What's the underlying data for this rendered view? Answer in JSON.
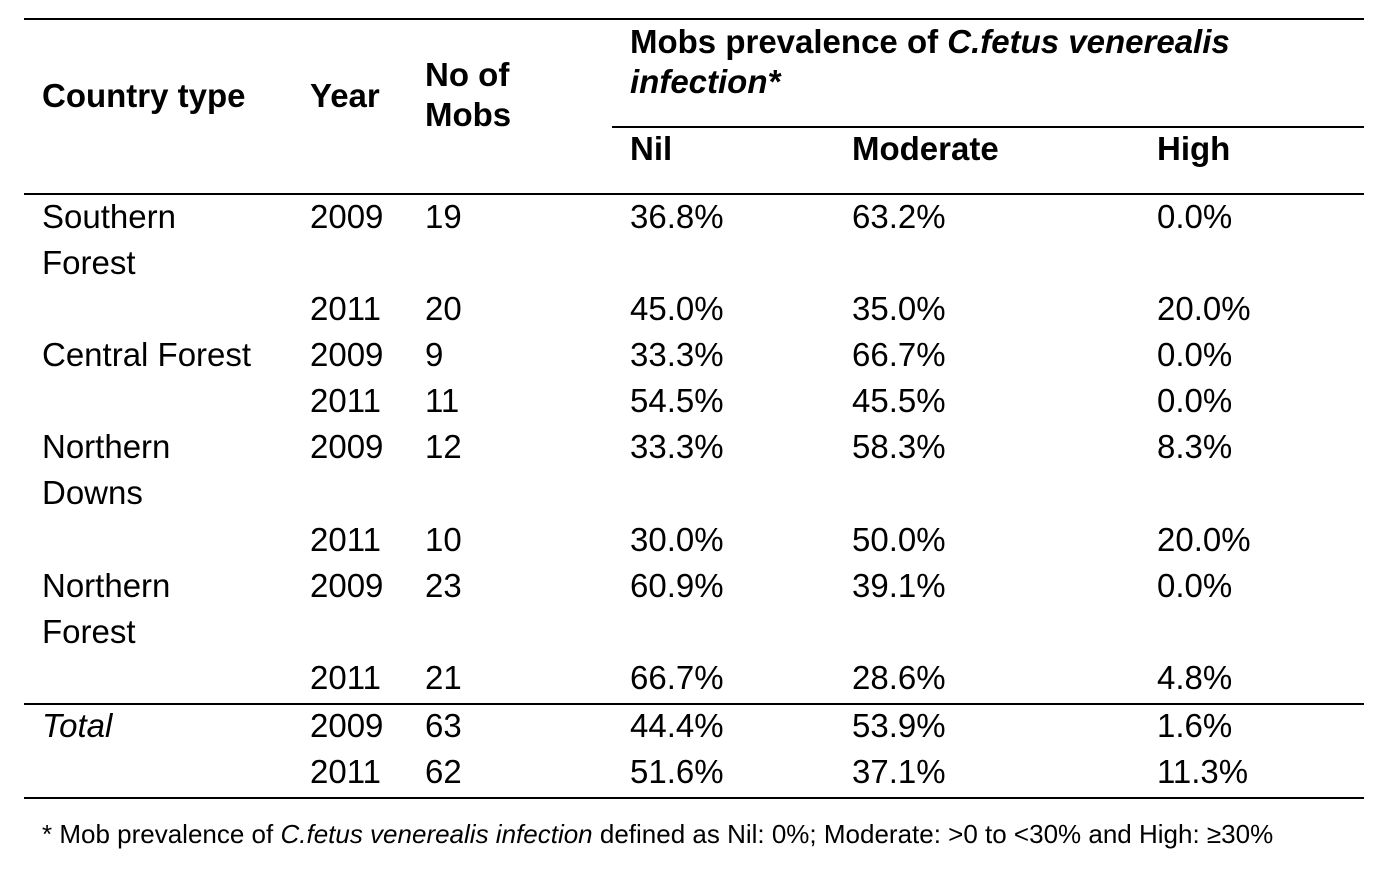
{
  "header": {
    "country_type": "Country type",
    "year": "Year",
    "no_of_mobs_line1": "No of",
    "no_of_mobs_line2": "Mobs",
    "prevalence_prefix": "Mobs prevalence of ",
    "prevalence_italic": "C.fetus venerealis",
    "prevalence_line2": "infection*",
    "nil": "Nil",
    "moderate": "Moderate",
    "high": "High"
  },
  "rows": [
    {
      "country_line1": "Southern",
      "country_line2": "Forest",
      "year": "2009",
      "mobs": "19",
      "nil": "36.8%",
      "moderate": "63.2%",
      "high": "0.0%"
    },
    {
      "country_line1": "",
      "country_line2": "",
      "year": "2011",
      "mobs": "20",
      "nil": "45.0%",
      "moderate": "35.0%",
      "high": "20.0%"
    },
    {
      "country_line1": "Central Forest",
      "country_line2": "",
      "year": "2009",
      "mobs": "9",
      "nil": "33.3%",
      "moderate": "66.7%",
      "high": "0.0%"
    },
    {
      "country_line1": "",
      "country_line2": "",
      "year": "2011",
      "mobs": "11",
      "nil": "54.5%",
      "moderate": "45.5%",
      "high": "0.0%"
    },
    {
      "country_line1": "Northern",
      "country_line2": "Downs",
      "year": "2009",
      "mobs": "12",
      "nil": "33.3%",
      "moderate": "58.3%",
      "high": "8.3%"
    },
    {
      "country_line1": "",
      "country_line2": "",
      "year": "2011",
      "mobs": "10",
      "nil": "30.0%",
      "moderate": "50.0%",
      "high": "20.0%"
    },
    {
      "country_line1": "Northern",
      "country_line2": "Forest",
      "year": "2009",
      "mobs": "23",
      "nil": "60.9%",
      "moderate": "39.1%",
      "high": "0.0%"
    },
    {
      "country_line1": "",
      "country_line2": "",
      "year": "2011",
      "mobs": "21",
      "nil": "66.7%",
      "moderate": "28.6%",
      "high": "4.8%"
    }
  ],
  "totals": [
    {
      "label": "Total",
      "year": "2009",
      "mobs": "63",
      "nil": "44.4%",
      "moderate": "53.9%",
      "high": "1.6%"
    },
    {
      "label": "",
      "year": "2011",
      "mobs": "62",
      "nil": "51.6%",
      "moderate": "37.1%",
      "high": "11.3%"
    }
  ],
  "footnote": {
    "prefix": "* Mob prevalence of ",
    "italic": "C.fetus venerealis infection",
    "suffix": " defined as Nil: 0%; Moderate: >0 to <30% and High: ≥30%"
  }
}
